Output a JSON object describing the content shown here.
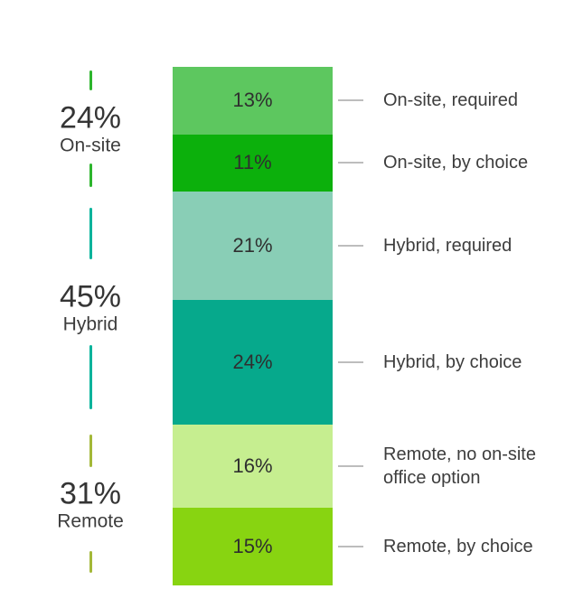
{
  "chart_data": {
    "type": "bar",
    "subtype": "single-stacked-column-100pct",
    "unit": "percent",
    "title": "",
    "xlabel": "",
    "ylabel": "",
    "ylim": [
      0,
      100
    ],
    "grid": false,
    "legend_position": "callout-labels-right-of-bar",
    "groups": [
      {
        "name": "On-site",
        "total": 24,
        "total_label": "24%",
        "tick_color": "#2db52d"
      },
      {
        "name": "Hybrid",
        "total": 45,
        "total_label": "45%",
        "tick_color": "#00b39b"
      },
      {
        "name": "Remote",
        "total": 31,
        "total_label": "31%",
        "tick_color": "#a3b838"
      }
    ],
    "segments": [
      {
        "group": "On-site",
        "label": "On-site, required",
        "value": 13,
        "value_label": "13%",
        "color": "#5dc75f"
      },
      {
        "group": "On-site",
        "label": "On-site, by choice",
        "value": 11,
        "value_label": "11%",
        "color": "#0cb00c"
      },
      {
        "group": "Hybrid",
        "label": "Hybrid, required",
        "value": 21,
        "value_label": "21%",
        "color": "#89ceb6"
      },
      {
        "group": "Hybrid",
        "label": "Hybrid, by choice",
        "value": 24,
        "value_label": "24%",
        "color": "#06a98c"
      },
      {
        "group": "Remote",
        "label": "Remote, no on-site office option",
        "value": 16,
        "value_label": "16%",
        "color": "#c6ee90"
      },
      {
        "group": "Remote",
        "label": "Remote, by choice",
        "value": 15,
        "value_label": "15%",
        "color": "#88d411"
      }
    ],
    "colors": {
      "connector_line": "#bdbdbd",
      "text": "#3d3d3d",
      "background": "#ffffff"
    }
  }
}
